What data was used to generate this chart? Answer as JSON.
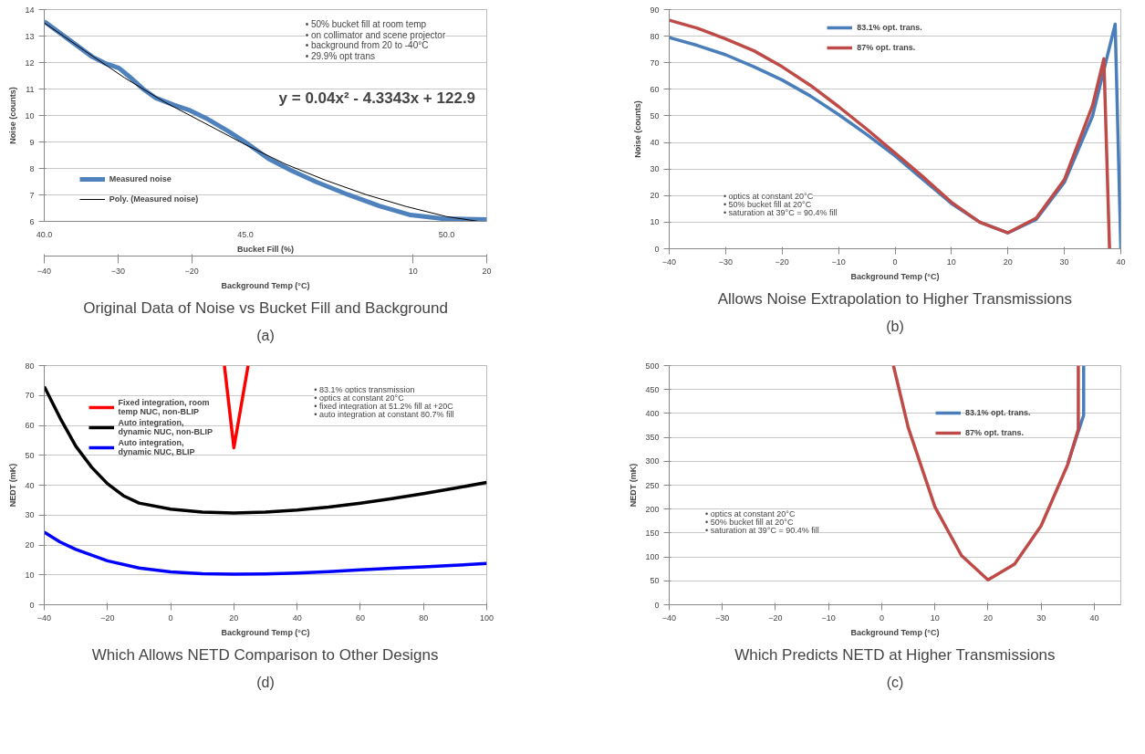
{
  "chart_data": [
    {
      "type": "line",
      "title": "Original Data of Noise vs Bucket Fill and Background",
      "subtitle": "(a)",
      "xlabel": "Bucket Fill (%)",
      "ylabel": "Noise (counts)",
      "x2label": "Background Temp (°C)",
      "xlim": [
        40,
        51
      ],
      "xticks": [
        {
          "value": 40,
          "label": "40.0"
        },
        {
          "value": 45,
          "label": "45.0"
        },
        {
          "value": 50,
          "label": "50.0"
        }
      ],
      "x2lim": [
        -40,
        20
      ],
      "x2ticks": [
        -40,
        -30,
        -20,
        10,
        20
      ],
      "ylim": [
        6,
        14
      ],
      "yticks": [
        6,
        7,
        8,
        9,
        10,
        11,
        12,
        13,
        14
      ],
      "grid": "y",
      "legend": "left",
      "annotations": [
        "• 50% bucket fill at room temp",
        "• on collimator and scene projector",
        "• background from 20 to -40°C",
        "• 29.9% opt trans",
        "y = 0.04x² - 4.3343x + 122.9"
      ],
      "series": [
        {
          "name": "Measured noise",
          "color": "#4f81bd",
          "x": [
            40,
            41.19,
            41.5,
            41.86,
            42.13,
            42.45,
            42.76,
            43.23,
            43.62,
            44.02,
            44.56,
            45,
            45.58,
            46.13,
            46.76,
            47.55,
            48.33,
            49.11,
            49.9,
            51
          ],
          "values": [
            13.55,
            12.22,
            11.98,
            11.79,
            11.45,
            11.01,
            10.67,
            10.39,
            10.19,
            9.9,
            9.42,
            8.99,
            8.36,
            7.93,
            7.49,
            7.01,
            6.58,
            6.24,
            6.1,
            6.07
          ]
        },
        {
          "name": "Poly. (Measured noise)",
          "color": "#000000",
          "x": [
            40,
            41,
            42,
            43,
            44,
            45,
            46,
            47,
            48,
            49,
            50,
            50.8
          ],
          "values": [
            13.5,
            12.45,
            11.42,
            10.5,
            9.7,
            8.9,
            8.16,
            7.55,
            7.01,
            6.56,
            6.18,
            6.0
          ]
        }
      ]
    },
    {
      "type": "line",
      "title": "Allows Noise Extrapolation to Higher Transmissions",
      "subtitle": "(b)",
      "xlabel": "Background Temp (°C)",
      "ylabel": "Noise (counts)",
      "xlim": [
        -40,
        40
      ],
      "xticks": [
        -40,
        -30,
        -20,
        -10,
        0,
        10,
        20,
        30,
        40
      ],
      "ylim": [
        0,
        90
      ],
      "yticks": [
        0,
        10,
        20,
        30,
        40,
        50,
        60,
        70,
        80,
        90
      ],
      "grid": "y",
      "legend": "top",
      "annotations": [
        "• optics at constant 20°C",
        "• 50% bucket fill at 20°C",
        "• saturation at 39°C = 90.4% fill"
      ],
      "series": [
        {
          "name": "83.1% opt. trans.",
          "color": "#4a7ebb",
          "x": [
            -40,
            -35,
            -30,
            -25,
            -20,
            -15,
            -10,
            -5,
            0,
            5,
            10,
            15,
            20,
            25,
            30,
            35,
            39,
            40
          ],
          "values": [
            79.5,
            76.5,
            73,
            68.5,
            63.5,
            57.5,
            50.5,
            43,
            35,
            26,
            17,
            10,
            6,
            11,
            25,
            50,
            84.5,
            0
          ]
        },
        {
          "name": "87% opt. trans.",
          "color": "#be4b48",
          "x": [
            -40,
            -35,
            -30,
            -25,
            -20,
            -15,
            -10,
            -5,
            0,
            5,
            10,
            15,
            20,
            25,
            30,
            35,
            37,
            38
          ],
          "values": [
            86,
            83,
            79,
            74.5,
            68.5,
            61.5,
            53.5,
            45,
            36,
            27,
            17.5,
            10,
            6,
            11.5,
            26,
            54,
            71.5,
            0
          ]
        }
      ]
    },
    {
      "type": "line",
      "title": "Which Allows NETD Comparison to Other Designs",
      "subtitle": "(d)",
      "xlabel": "Background Temp (°C)",
      "ylabel": "NEDT (mK)",
      "xlim": [
        -40,
        100
      ],
      "xticks": [
        -40,
        -20,
        0,
        20,
        40,
        60,
        80,
        100
      ],
      "ylim": [
        0,
        80
      ],
      "yticks": [
        0,
        10,
        20,
        30,
        40,
        50,
        60,
        70,
        80
      ],
      "grid": "y",
      "legend": "top left",
      "annotations": [
        "• 83.1% optics transmission",
        "• optics at constant 20°C",
        "• fixed integration at 51.2% fill at +20C",
        "• auto integration at constant 80.7% fill"
      ],
      "series": [
        {
          "name": "Fixed integration, room temp NUC, non-BLIP",
          "color": "#ff0000",
          "x": [
            17,
            20,
            24.5
          ],
          "values": [
            80,
            52.5,
            80
          ]
        },
        {
          "name": "Auto integration, dynamic NUC, non-BLIP",
          "color": "#000000",
          "x": [
            -40,
            -35,
            -30,
            -25,
            -20,
            -15,
            -10,
            0,
            10,
            20,
            30,
            40,
            50,
            60,
            70,
            80,
            90,
            100
          ],
          "values": [
            73,
            62.5,
            53,
            46,
            40.5,
            36.5,
            34,
            32,
            31,
            30.7,
            31,
            31.7,
            32.7,
            34,
            35.5,
            37.2,
            39,
            40.9
          ]
        },
        {
          "name": "Auto integration, dynamic NUC, BLIP",
          "color": "#0000ff",
          "x": [
            -40,
            -35,
            -30,
            -20,
            -10,
            0,
            10,
            20,
            30,
            40,
            50,
            60,
            70,
            80,
            90,
            100
          ],
          "values": [
            24.3,
            21,
            18.5,
            14.7,
            12.3,
            11,
            10.4,
            10.2,
            10.3,
            10.6,
            11.1,
            11.7,
            12.2,
            12.7,
            13.2,
            13.8
          ]
        }
      ]
    },
    {
      "type": "line",
      "title": "Which Predicts NETD at Higher Transmissions",
      "subtitle": "(c)",
      "xlabel": "Background Temp (°C)",
      "ylabel": "NEDT (mK)",
      "xlim": [
        -40,
        45
      ],
      "xticks": [
        -40,
        -30,
        -20,
        -10,
        0,
        10,
        20,
        30,
        40
      ],
      "ylim": [
        0,
        500
      ],
      "yticks": [
        0,
        50,
        100,
        150,
        200,
        250,
        300,
        350,
        400,
        450,
        500
      ],
      "grid": "y",
      "legend": "top right",
      "annotations": [
        "• optics at constant 20°C",
        "• 50% bucket fill at 20°C",
        "• saturation at 39°C = 90.4% fill"
      ],
      "series": [
        {
          "name": "83.1% opt. trans.",
          "color": "#4a7ebb",
          "x": [
            35,
            38,
            38
          ],
          "values": [
            295,
            396,
            500
          ]
        },
        {
          "name": "87% opt. trans.",
          "color": "#be4b48",
          "x": [
            2.2,
            5,
            10,
            15,
            20,
            25,
            30,
            35,
            37,
            37
          ],
          "values": [
            500,
            370,
            205,
            103,
            52,
            85,
            165,
            293,
            367,
            500
          ]
        }
      ]
    }
  ]
}
